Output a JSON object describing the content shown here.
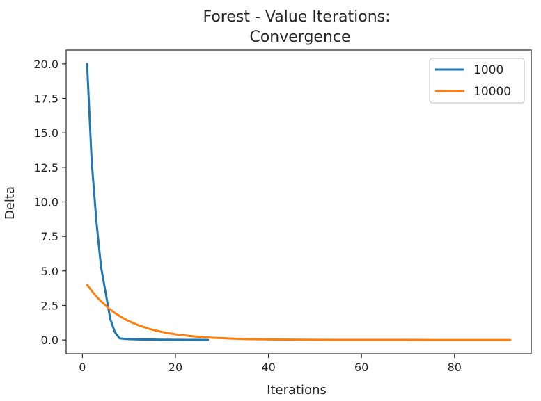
{
  "chart_data": {
    "type": "line",
    "title": [
      "Forest - Value Iterations:",
      "Convergence"
    ],
    "xlabel": "Iterations",
    "ylabel": "Delta",
    "xlim": [
      -3.5,
      96.5
    ],
    "ylim": [
      -1.0,
      21.0
    ],
    "xticks": [
      0,
      20,
      40,
      60,
      80
    ],
    "yticks": [
      0.0,
      2.5,
      5.0,
      7.5,
      10.0,
      12.5,
      15.0,
      17.5,
      20.0
    ],
    "legend_position": "top-right",
    "grid": false,
    "series": [
      {
        "name": "1000",
        "color": "#1f77b4",
        "x": [
          1,
          2,
          3,
          4,
          5,
          6,
          7,
          8,
          9,
          10,
          11,
          12,
          13,
          14,
          15,
          16,
          17,
          18,
          19,
          20,
          21,
          22,
          23,
          24,
          25,
          26,
          27
        ],
        "y": [
          20.0,
          12.9,
          8.6,
          5.3,
          3.4,
          1.5,
          0.55,
          0.12,
          0.08,
          0.06,
          0.05,
          0.04,
          0.035,
          0.03,
          0.03,
          0.025,
          0.02,
          0.02,
          0.02,
          0.015,
          0.015,
          0.01,
          0.01,
          0.01,
          0.01,
          0.01,
          0.01
        ]
      },
      {
        "name": "10000",
        "color": "#ff7f0e",
        "x": [
          1,
          2,
          3,
          4,
          5,
          6,
          7,
          8,
          9,
          10,
          12,
          14,
          16,
          18,
          20,
          22,
          24,
          26,
          28,
          30,
          33,
          36,
          40,
          45,
          50,
          55,
          60,
          65,
          70,
          75,
          80,
          85,
          92
        ],
        "y": [
          4.0,
          3.55,
          3.15,
          2.8,
          2.5,
          2.2,
          1.95,
          1.73,
          1.53,
          1.36,
          1.07,
          0.84,
          0.66,
          0.52,
          0.41,
          0.33,
          0.26,
          0.2,
          0.16,
          0.13,
          0.09,
          0.06,
          0.04,
          0.025,
          0.015,
          0.01,
          0.007,
          0.005,
          0.004,
          0.003,
          0.002,
          0.002,
          0.001
        ]
      }
    ]
  }
}
